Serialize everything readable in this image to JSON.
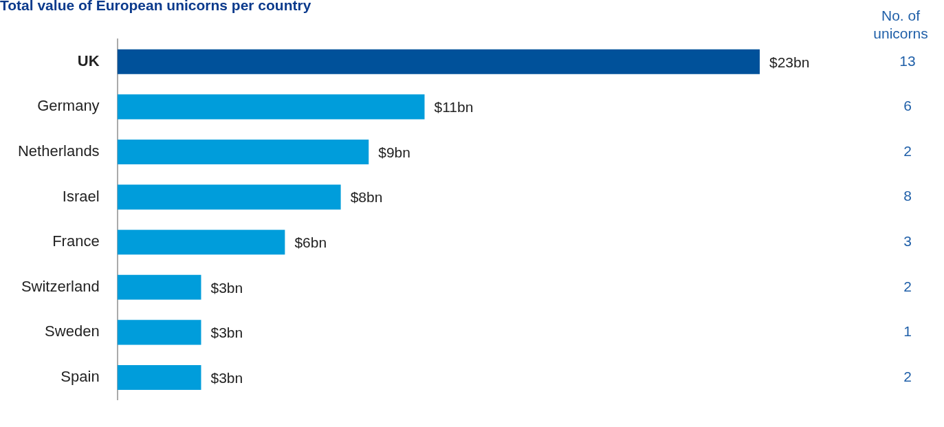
{
  "chart_data": {
    "type": "bar",
    "orientation": "horizontal",
    "title": "Total value of European unicorns per country",
    "categories": [
      "UK",
      "Germany",
      "Netherlands",
      "Israel",
      "France",
      "Switzerland",
      "Sweden",
      "Spain"
    ],
    "values": [
      23,
      11,
      9,
      8,
      6,
      3,
      3,
      3
    ],
    "colors": [
      "#00519a",
      "#009ddb",
      "#009ddb",
      "#009ddb",
      "#009ddb",
      "#009ddb",
      "#009ddb",
      "#009ddb"
    ],
    "value_labels": [
      "$23bn",
      "$11bn",
      "$9bn",
      "$8bn",
      "$6bn",
      "$3bn",
      "$3bn",
      "$3bn"
    ],
    "annotations": [
      "No. of unicorns",
      "13",
      "6",
      "2",
      "8",
      "3",
      "2",
      "1",
      "2"
    ],
    "legend": false,
    "grid": false
  }
}
